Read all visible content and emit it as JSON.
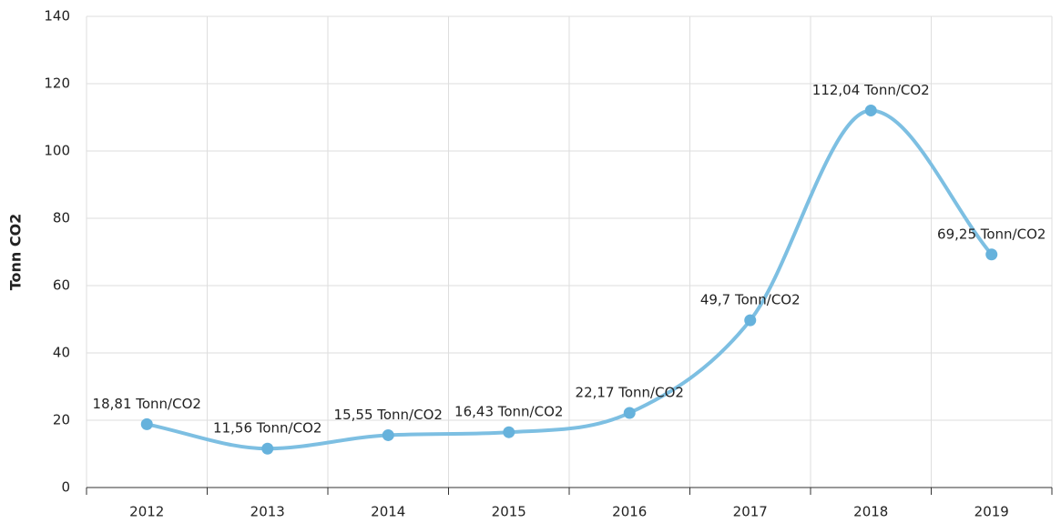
{
  "chart_data": {
    "type": "line",
    "y_axis_label": "Tonn CO2",
    "categories": [
      "2012",
      "2013",
      "2014",
      "2015",
      "2016",
      "2017",
      "2018",
      "2019"
    ],
    "series": [
      {
        "name": "Tonn/CO2",
        "color": "#7dbfe2",
        "marker_color": "#66b2dc",
        "values": [
          18.81,
          11.56,
          15.55,
          16.43,
          22.17,
          49.7,
          112.04,
          69.25
        ],
        "value_labels": [
          "18,81 Tonn/CO2",
          "11,56 Tonn/CO2",
          "15,55 Tonn/CO2",
          "16,43 Tonn/CO2",
          "22,17 Tonn/CO2",
          "49,7 Tonn/CO2",
          "112,04 Tonn/CO2",
          "69,25 Tonn/CO2"
        ]
      }
    ],
    "ylim": [
      0,
      140
    ],
    "yticks": [
      0,
      20,
      40,
      60,
      80,
      100,
      120,
      140
    ],
    "grid": true
  }
}
